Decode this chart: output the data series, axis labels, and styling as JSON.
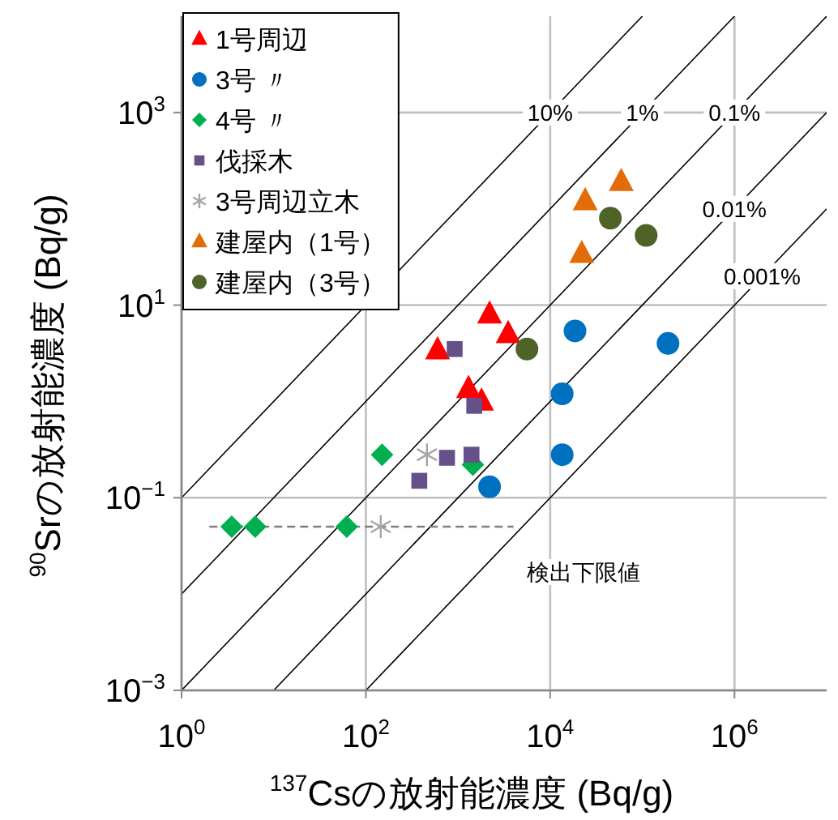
{
  "chart_data": {
    "type": "scatter",
    "xlabel": "$^{137}$Csの放射能濃度 (Bq/g)",
    "ylabel": "$^{90}$Srの放射能濃度 (Bq/g)",
    "log": "xy",
    "xlim": [
      1,
      10000000
    ],
    "ylim": [
      0.001,
      10000
    ],
    "xticks": [
      {
        "value": 1,
        "label": "10$^{0}$"
      },
      {
        "value": 100,
        "label": "10$^{2}$"
      },
      {
        "value": 10000,
        "label": "10$^{4}$"
      },
      {
        "value": 1000000,
        "label": "10$^{6}$"
      }
    ],
    "yticks": [
      {
        "value": 0.001,
        "label": "10$^{−3}$"
      },
      {
        "value": 0.1,
        "label": "10$^{−1}$"
      },
      {
        "value": 10,
        "label": "10$^{1}$"
      },
      {
        "value": 1000,
        "label": "10$^{3}$"
      }
    ],
    "grid": true,
    "legend": "top left",
    "series": [
      {
        "type": "line",
        "color": "#000000",
        "x": [
          1,
          100000
        ],
        "values": [
          0.1,
          10000
        ]
      },
      {
        "type": "line",
        "color": "#000000",
        "x": [
          1,
          1000000
        ],
        "values": [
          0.01,
          10000
        ]
      },
      {
        "type": "line",
        "color": "#000000",
        "x": [
          1,
          10000000
        ],
        "values": [
          0.001,
          10000
        ]
      },
      {
        "type": "line",
        "color": "#000000",
        "x": [
          10,
          10000000
        ],
        "values": [
          0.001,
          1000
        ]
      },
      {
        "type": "line",
        "color": "#000000",
        "x": [
          100,
          10000000
        ],
        "values": [
          0.001,
          100
        ]
      },
      {
        "type": "line",
        "color": "#7f7f7f",
        "line_style": "dashed",
        "x": [
          2,
          4000
        ],
        "values": [
          0.05,
          0.05
        ]
      },
      {
        "name": "1号周辺",
        "color": "#ff0000",
        "marker": "triangle",
        "x": [
          600,
          2200,
          3500,
          1300,
          1800
        ],
        "values": [
          3.4,
          8,
          5,
          1.35,
          1.0
        ]
      },
      {
        "name": "3号 〃",
        "color": "#0070c0",
        "marker": "circle",
        "x": [
          2200,
          18600,
          190000,
          13500,
          13500
        ],
        "values": [
          0.13,
          5.4,
          4.0,
          1.2,
          0.28
        ]
      },
      {
        "name": "4号 〃",
        "color": "#00b050",
        "marker": "diamond",
        "x": [
          150,
          1450,
          3.5,
          6.3,
          62
        ],
        "values": [
          0.28,
          0.22,
          0.05,
          0.05,
          0.05
        ]
      },
      {
        "name": "伐採木",
        "color": "#65508a",
        "marker": "square",
        "x": [
          920,
          1500,
          760,
          1400,
          380
        ],
        "values": [
          3.5,
          0.9,
          0.26,
          0.28,
          0.15
        ]
      },
      {
        "name": "3号周辺立木",
        "color": "#a6a6a6",
        "marker": "cross",
        "x": [
          460,
          145
        ],
        "values": [
          0.28,
          0.05
        ]
      },
      {
        "name": "建屋内（1号）",
        "color": "#e36c09",
        "marker": "triangle",
        "x": [
          24000,
          59000,
          22000
        ],
        "values": [
          120,
          190,
          34
        ]
      },
      {
        "name": "建屋内（3号）",
        "color": "#4f6228",
        "marker": "circle",
        "x": [
          45000,
          110000,
          5600
        ],
        "values": [
          80,
          53,
          3.5
        ]
      }
    ],
    "annotations": [
      {
        "text": "10%",
        "x": 10000,
        "y": 1000
      },
      {
        "text": "1%",
        "x": 100000,
        "y": 1000
      },
      {
        "text": "0.1%",
        "x": 1000000,
        "y": 1000
      },
      {
        "text": "0.01%",
        "x": 1000000,
        "y": 100
      },
      {
        "text": "0.001%",
        "x": 2000000,
        "y": 20
      },
      "検出下限値"
    ]
  }
}
